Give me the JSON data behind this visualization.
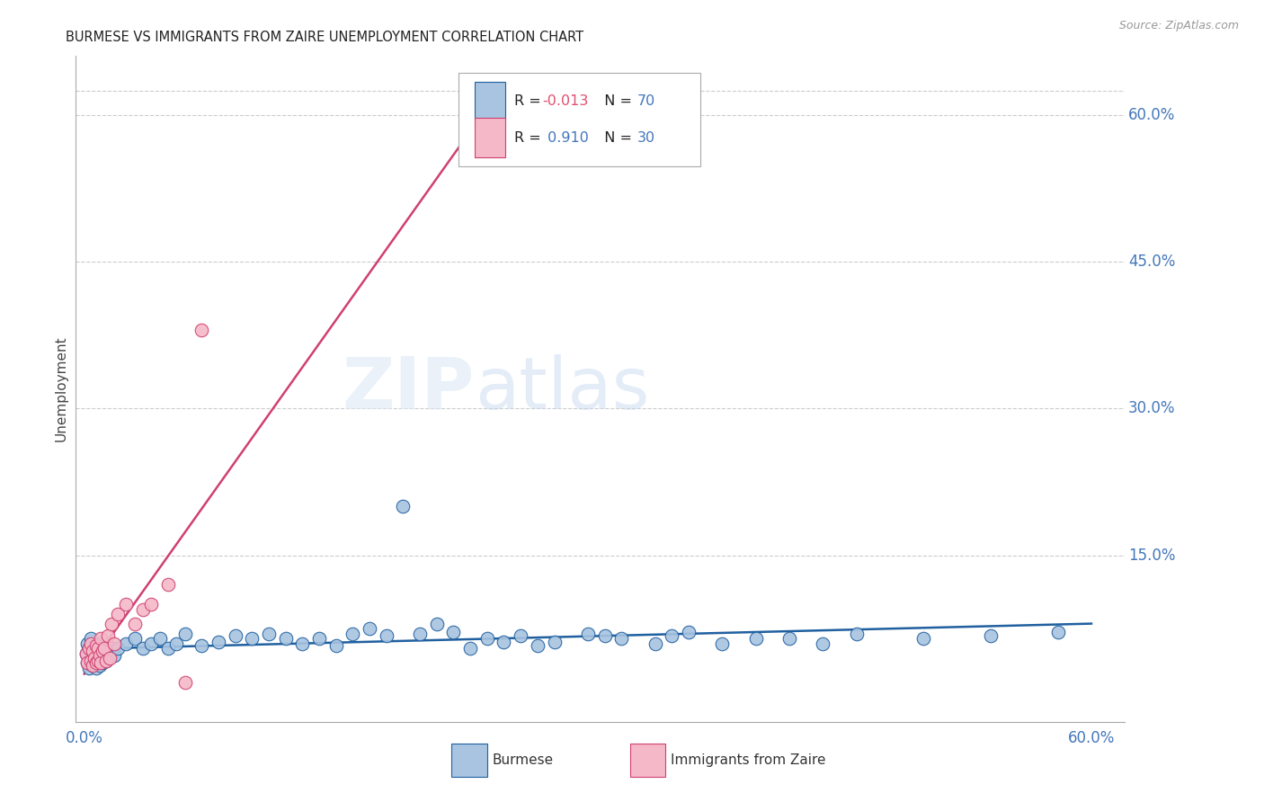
{
  "title": "BURMESE VS IMMIGRANTS FROM ZAIRE UNEMPLOYMENT CORRELATION CHART",
  "source": "Source: ZipAtlas.com",
  "ylabel": "Unemployment",
  "burmese_color": "#a8c4e0",
  "zaire_color": "#f4b8c8",
  "burmese_line_color": "#2060a0",
  "zaire_line_color": "#d04070",
  "title_fontsize": 10.5,
  "source_fontsize": 9,
  "ytick_labels": [
    "60.0%",
    "45.0%",
    "30.0%",
    "15.0%"
  ],
  "ytick_values": [
    0.6,
    0.45,
    0.3,
    0.15
  ],
  "xtick_left": "0.0%",
  "xtick_right": "60.0%",
  "xlim": [
    0.0,
    0.6
  ],
  "ylim": [
    0.0,
    0.65
  ],
  "legend_line1_r": "-0.013",
  "legend_line1_n": "70",
  "legend_line2_r": "0.910",
  "legend_line2_n": "30",
  "burmese_x": [
    0.001,
    0.002,
    0.002,
    0.003,
    0.003,
    0.004,
    0.004,
    0.005,
    0.005,
    0.006,
    0.006,
    0.007,
    0.007,
    0.008,
    0.008,
    0.009,
    0.009,
    0.01,
    0.01,
    0.011,
    0.012,
    0.013,
    0.014,
    0.016,
    0.018,
    0.02,
    0.025,
    0.03,
    0.035,
    0.04,
    0.045,
    0.05,
    0.055,
    0.06,
    0.07,
    0.08,
    0.09,
    0.1,
    0.11,
    0.12,
    0.13,
    0.14,
    0.15,
    0.16,
    0.17,
    0.18,
    0.2,
    0.22,
    0.24,
    0.26,
    0.28,
    0.3,
    0.32,
    0.35,
    0.38,
    0.42,
    0.46,
    0.5,
    0.54,
    0.58,
    0.19,
    0.21,
    0.23,
    0.25,
    0.27,
    0.31,
    0.34,
    0.36,
    0.4,
    0.44
  ],
  "burmese_y": [
    0.05,
    0.04,
    0.06,
    0.035,
    0.055,
    0.045,
    0.065,
    0.038,
    0.052,
    0.042,
    0.058,
    0.035,
    0.048,
    0.042,
    0.055,
    0.038,
    0.05,
    0.045,
    0.06,
    0.04,
    0.048,
    0.042,
    0.052,
    0.055,
    0.048,
    0.055,
    0.06,
    0.065,
    0.055,
    0.06,
    0.065,
    0.055,
    0.06,
    0.07,
    0.058,
    0.062,
    0.068,
    0.065,
    0.07,
    0.065,
    0.06,
    0.065,
    0.058,
    0.07,
    0.075,
    0.068,
    0.07,
    0.072,
    0.065,
    0.068,
    0.062,
    0.07,
    0.065,
    0.068,
    0.06,
    0.065,
    0.07,
    0.065,
    0.068,
    0.072,
    0.2,
    0.08,
    0.055,
    0.062,
    0.058,
    0.068,
    0.06,
    0.072,
    0.065,
    0.06
  ],
  "zaire_x": [
    0.001,
    0.002,
    0.003,
    0.004,
    0.004,
    0.005,
    0.005,
    0.006,
    0.007,
    0.007,
    0.008,
    0.008,
    0.009,
    0.01,
    0.01,
    0.011,
    0.012,
    0.013,
    0.014,
    0.015,
    0.016,
    0.018,
    0.02,
    0.025,
    0.03,
    0.035,
    0.04,
    0.05,
    0.06,
    0.07
  ],
  "zaire_y": [
    0.05,
    0.04,
    0.055,
    0.042,
    0.06,
    0.038,
    0.052,
    0.045,
    0.04,
    0.058,
    0.042,
    0.055,
    0.048,
    0.04,
    0.065,
    0.052,
    0.055,
    0.042,
    0.068,
    0.045,
    0.08,
    0.06,
    0.09,
    0.1,
    0.08,
    0.095,
    0.1,
    0.12,
    0.02,
    0.38
  ],
  "zaire_line_x0": 0.0,
  "zaire_line_y0": 0.0,
  "zaire_line_x1": 0.3,
  "zaire_line_y1": 0.625
}
